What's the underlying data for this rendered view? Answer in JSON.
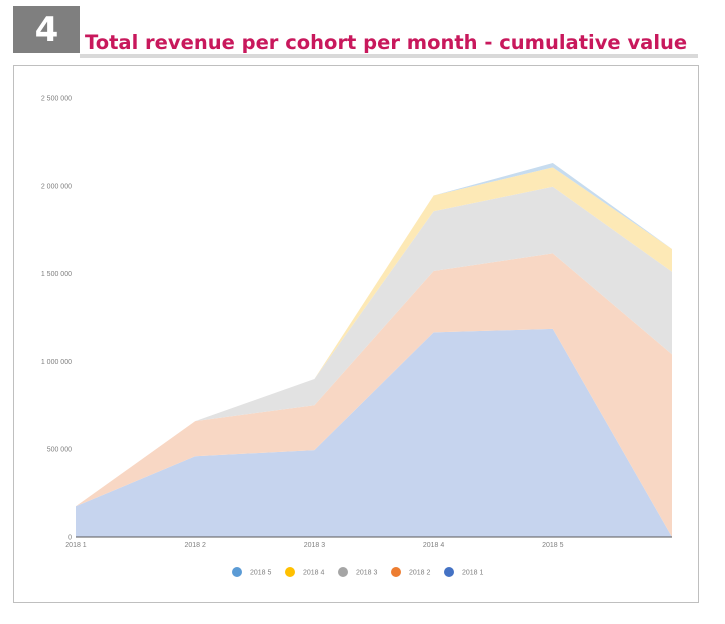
{
  "header": {
    "number": "4",
    "title": "Total revenue per cohort per month - cumulative value"
  },
  "chart_data": {
    "type": "area",
    "stacked": true,
    "title": "Total revenue per cohort per month - cumulative value",
    "categories": [
      "2018 1",
      "2018 2",
      "2018 3",
      "2018 4",
      "2018 5",
      ""
    ],
    "ylim": [
      0,
      2500000
    ],
    "yticks": [
      0,
      500000,
      1000000,
      1500000,
      2000000,
      2500000
    ],
    "ytick_labels": [
      "0",
      "500 000",
      "1 000 000",
      "1 500 000",
      "2 000 000",
      "2 500 000"
    ],
    "legend_position": "bottom",
    "series": [
      {
        "name": "2018 1",
        "color": "#c6d4ee",
        "legend_color": "#4472c4",
        "values": [
          175000,
          460000,
          495000,
          1165000,
          1185000,
          0
        ]
      },
      {
        "name": "2018 2",
        "color": "#f8d7c4",
        "legend_color": "#ed7d31",
        "values": [
          0,
          200000,
          255000,
          350000,
          430000,
          1040000
        ]
      },
      {
        "name": "2018 3",
        "color": "#e2e2e2",
        "legend_color": "#a5a5a5",
        "values": [
          0,
          0,
          150000,
          340000,
          380000,
          470000
        ]
      },
      {
        "name": "2018 4",
        "color": "#fde9b6",
        "legend_color": "#ffc000",
        "values": [
          0,
          0,
          0,
          90000,
          110000,
          130000
        ]
      },
      {
        "name": "2018 5",
        "color": "#c7dcef",
        "legend_color": "#5b9bd5",
        "values": [
          0,
          0,
          0,
          0,
          25000,
          0
        ]
      }
    ],
    "legend_order": [
      "2018 5",
      "2018 4",
      "2018 3",
      "2018 2",
      "2018 1"
    ]
  }
}
